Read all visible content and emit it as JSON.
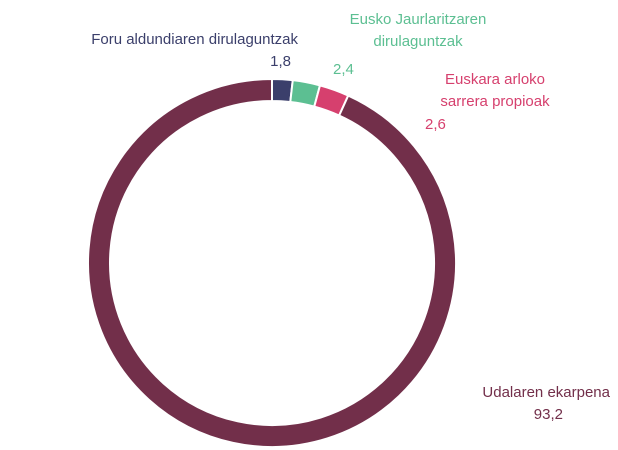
{
  "chart_data": {
    "type": "donut",
    "categories": [
      "Foru aldundiaren dirulaguntzak",
      "Eusko Jaurlaritzaren dirulaguntzak",
      "Euskara arloko sarrera propioak",
      "Udalaren ekarpena"
    ],
    "values": [
      1.8,
      2.4,
      2.6,
      93.2
    ],
    "value_labels": [
      "1,8",
      "2,4",
      "2,6",
      "93,2"
    ],
    "colors": [
      "#3b3f6b",
      "#5cbf92",
      "#d6406e",
      "#722f4a"
    ]
  }
}
